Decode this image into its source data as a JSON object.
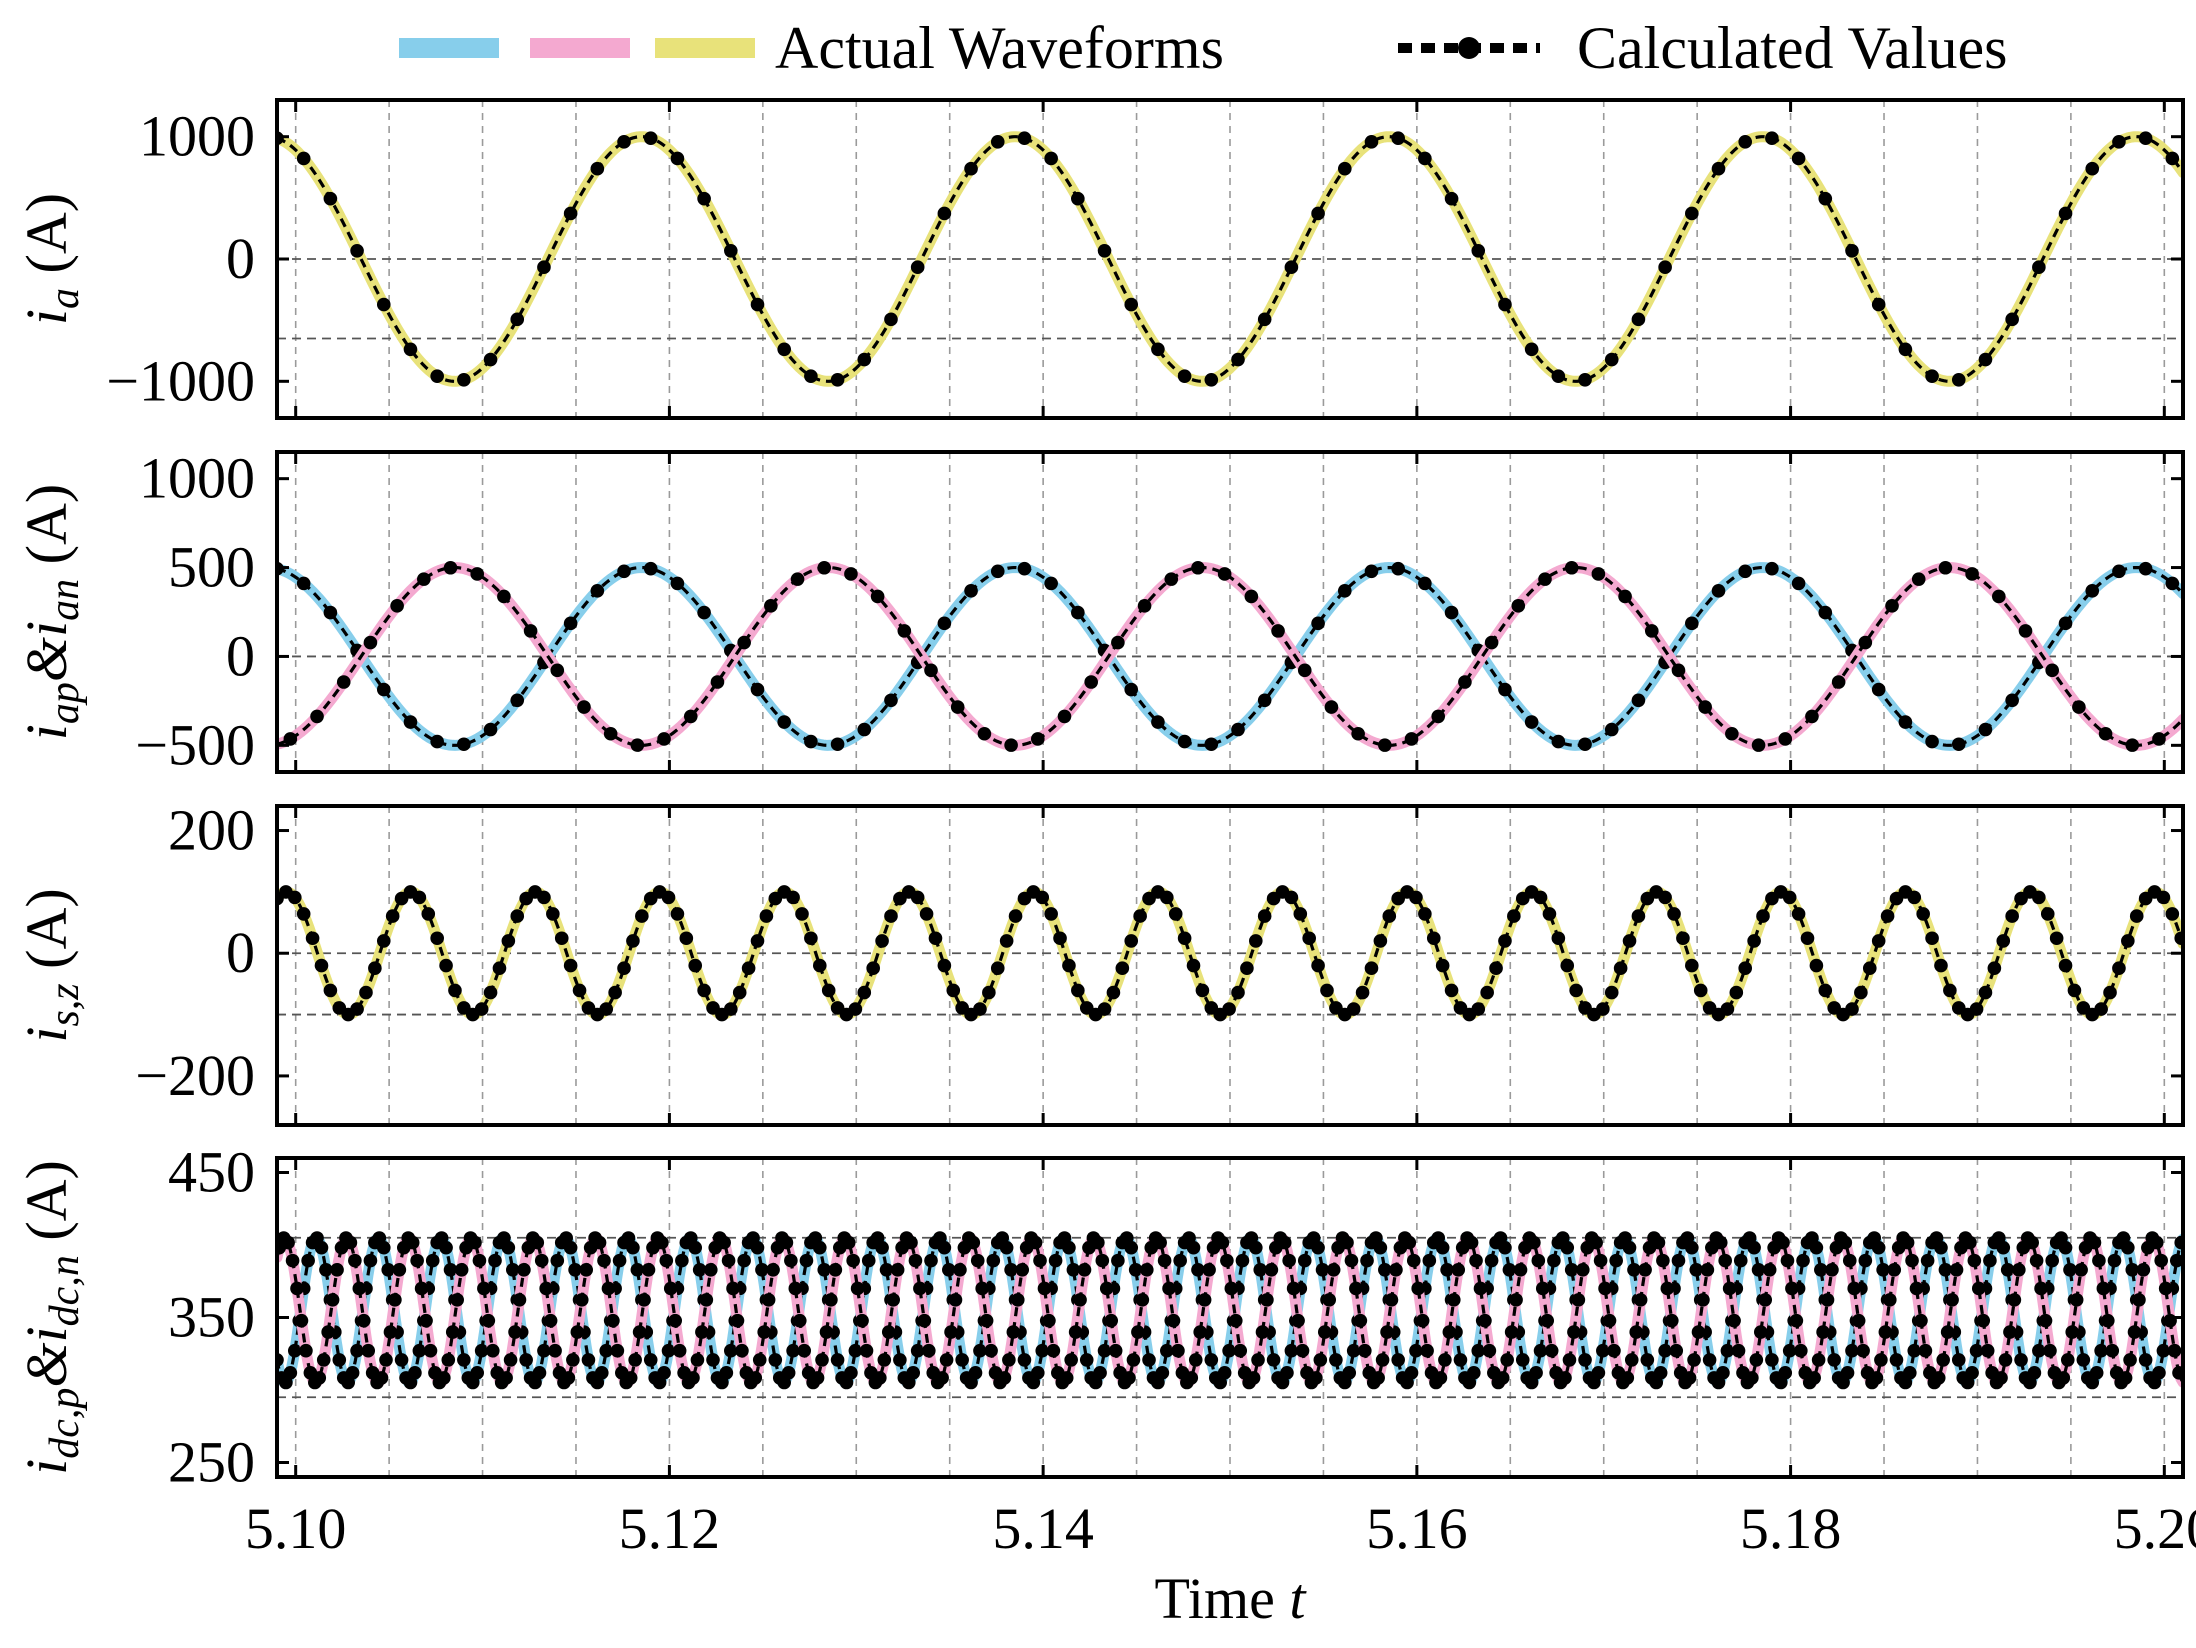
{
  "legend": {
    "actual_label": "Actual Waveforms",
    "calculated_label": "Calculated Values",
    "actual_colors": [
      "#87ceeb",
      "#f4a9d0",
      "#e8e27a"
    ]
  },
  "colors": {
    "blue": "#87ceeb",
    "pink": "#f4a9d0",
    "yellow": "#e8e27a",
    "calculated": "#000000"
  },
  "chart_data": {
    "type": "line",
    "xlabel": "Time t",
    "xlim": [
      5.099,
      5.201
    ],
    "xticks": [
      5.1,
      5.12,
      5.14,
      5.16,
      5.18,
      5.2
    ],
    "xtick_labels": [
      "5.10",
      "5.12",
      "5.14",
      "5.16",
      "5.18",
      "5.20"
    ],
    "panels": [
      {
        "id": "ia",
        "ylabel_main": "i",
        "ylabel_sub": "a",
        "ylabel_unit": " (A)",
        "ylim": [
          -1300,
          1300
        ],
        "yticks": [
          1000,
          0,
          -1000
        ],
        "ytick_labels": [
          "1000",
          "0",
          "−1000"
        ],
        "hgrid": [
          0,
          -650
        ],
        "series": [
          {
            "name": "i_a",
            "color": "yellow",
            "amplitude": 1000,
            "offset": 0,
            "frequency_hz": 50,
            "peak_time": 5.0985
          }
        ]
      },
      {
        "id": "iap_ian",
        "ylabel_main": "i",
        "ylabel_sub": "ap",
        "ylabel_amp": "&i",
        "ylabel_sub2": "an",
        "ylabel_unit": " (A)",
        "ylim": [
          -650,
          1150
        ],
        "yticks": [
          1000,
          500,
          0,
          -500
        ],
        "ytick_labels": [
          "1000",
          "500",
          "0",
          "−500"
        ],
        "hgrid": [
          0
        ],
        "series": [
          {
            "name": "i_ap",
            "color": "blue",
            "amplitude": 500,
            "offset": 0,
            "frequency_hz": 50,
            "peak_time": 5.0985
          },
          {
            "name": "i_an",
            "color": "pink",
            "amplitude": 500,
            "offset": 0,
            "frequency_hz": 50,
            "peak_time": 5.1085
          }
        ]
      },
      {
        "id": "isz",
        "ylabel_main": "i",
        "ylabel_sub": "s,z",
        "ylabel_unit": " (A)",
        "ylim": [
          -280,
          240
        ],
        "yticks": [
          200,
          0,
          -200
        ],
        "ytick_labels": [
          "200",
          "0",
          "−200"
        ],
        "hgrid": [
          0,
          -100
        ],
        "series": [
          {
            "name": "i_s,z",
            "color": "yellow",
            "amplitude": 100,
            "offset": 0,
            "frequency_hz": 150,
            "peak_time": 5.0995
          }
        ]
      },
      {
        "id": "idc",
        "ylabel_main": "i",
        "ylabel_sub": "dc,p",
        "ylabel_amp": "&i",
        "ylabel_sub2": "dc,n",
        "ylabel_unit": " (A)",
        "ylim": [
          240,
          460
        ],
        "yticks": [
          450,
          350,
          250
        ],
        "ytick_labels": [
          "450",
          "350",
          "250"
        ],
        "hgrid": [
          405,
          295
        ],
        "series": [
          {
            "name": "i_dc,p",
            "color": "blue",
            "amplitude": 50,
            "offset": 355,
            "frequency_hz": 300,
            "peak_time": 5.1011
          },
          {
            "name": "i_dc,n",
            "color": "pink",
            "amplitude": 50,
            "offset": 355,
            "frequency_hz": 300,
            "peak_time": 5.0994
          }
        ]
      }
    ]
  }
}
